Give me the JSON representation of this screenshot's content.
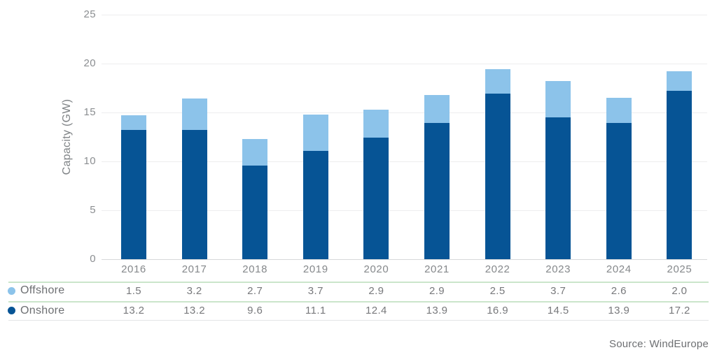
{
  "chart_data": {
    "type": "bar",
    "stacked": true,
    "title": "",
    "categories": [
      "2016",
      "2017",
      "2018",
      "2019",
      "2020",
      "2021",
      "2022",
      "2023",
      "2024",
      "2025"
    ],
    "series": [
      {
        "name": "Offshore",
        "color": "#8cc3ea",
        "values": [
          1.5,
          3.2,
          2.7,
          3.7,
          2.9,
          2.9,
          2.5,
          3.7,
          2.6,
          2.0
        ]
      },
      {
        "name": "Onshore",
        "color": "#065495",
        "values": [
          13.2,
          13.2,
          9.6,
          11.1,
          12.4,
          13.9,
          16.9,
          14.5,
          13.9,
          17.2
        ]
      }
    ],
    "xlabel": "",
    "ylabel": "Capacity (GW)",
    "ylim": [
      0,
      25
    ],
    "yticks": [
      0,
      5,
      10,
      15,
      20,
      25
    ],
    "grid": true,
    "legend_position": "table-left"
  },
  "labels": {
    "source": "Source: WindEurope"
  },
  "colors": {
    "gridline": "#ededee",
    "baseline": "#d6d8da",
    "table_divider_green": "#cbe5cb",
    "table_divider_gray": "#e4e5e7",
    "axis_text": "#8b8e91",
    "table_text": "#77787b"
  }
}
